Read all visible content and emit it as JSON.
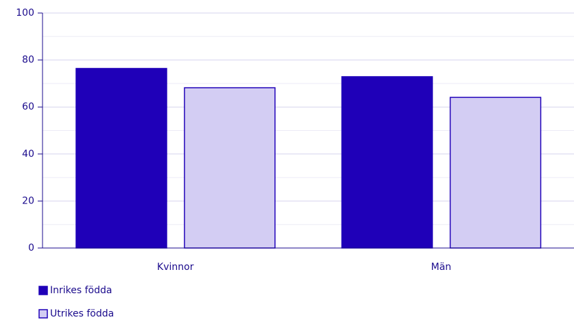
{
  "chart_data": {
    "type": "bar",
    "categories": [
      "Kvinnor",
      "Män"
    ],
    "series": [
      {
        "name": "Inrikes födda",
        "color": "#1f00b8",
        "values": [
          76.4,
          72.9
        ]
      },
      {
        "name": "Utrikes födda",
        "color": "#d3cdf3",
        "values": [
          68.2,
          64.1
        ]
      }
    ],
    "ylim": [
      0,
      100
    ],
    "yticks": [
      0,
      20,
      40,
      60,
      80,
      100
    ],
    "minor_yticks": [
      10,
      30,
      50,
      70,
      90
    ],
    "grid": true
  }
}
